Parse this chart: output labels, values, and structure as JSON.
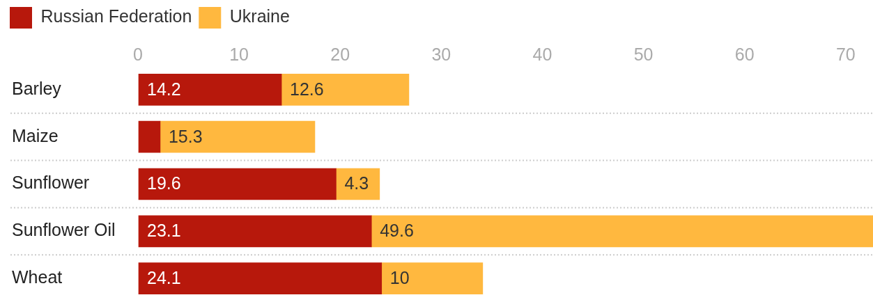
{
  "chart_data": {
    "type": "bar",
    "orientation": "horizontal",
    "stacked": true,
    "categories": [
      "Barley",
      "Maize",
      "Sunflower",
      "Sunflower Oil",
      "Wheat"
    ],
    "series": [
      {
        "name": "Russian Federation",
        "color": "#b7180c",
        "values": [
          14.2,
          2.2,
          19.6,
          23.1,
          24.1
        ],
        "value_labels": [
          "14.2",
          null,
          "19.6",
          "23.1",
          "24.1"
        ]
      },
      {
        "name": "Ukraine",
        "color": "#ffb83f",
        "values": [
          12.6,
          15.3,
          4.3,
          49.6,
          10
        ],
        "value_labels": [
          "12.6",
          "15.3",
          "4.3",
          "49.6",
          "10"
        ]
      }
    ],
    "xlim": [
      0,
      72.7
    ],
    "xticks": [
      0,
      10,
      20,
      30,
      40,
      50,
      60,
      70
    ],
    "grid": true,
    "legend": "top left"
  }
}
